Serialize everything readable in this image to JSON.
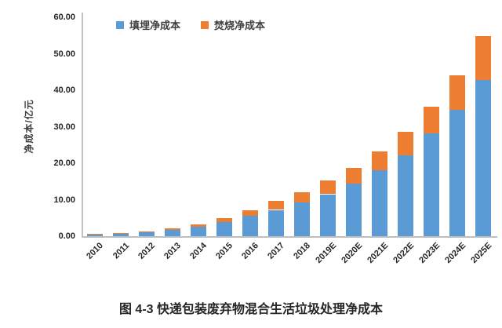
{
  "page": {
    "caption": "图 4-3 快递包装废弃物混合生活垃圾处理净成本"
  },
  "chart_data": {
    "type": "bar",
    "stacked": true,
    "title": "",
    "ylabel": "净成本/亿元",
    "xlabel": "",
    "ylim": [
      0,
      60
    ],
    "ytick_labels": [
      "0.00",
      "10.00",
      "20.00",
      "30.00",
      "40.00",
      "50.00",
      "60.00"
    ],
    "grid": false,
    "legend_position": "top",
    "categories": [
      "2010",
      "2011",
      "2012",
      "2013",
      "2014",
      "2015",
      "2016",
      "2017",
      "2018",
      "2019E",
      "2020E",
      "2021E",
      "2022E",
      "2023E",
      "2024E",
      "2025E"
    ],
    "series": [
      {
        "name": "填埋净成本",
        "color": "#5B9BD5",
        "values": [
          0.5,
          0.8,
          1.1,
          1.8,
          2.5,
          3.9,
          5.6,
          7.2,
          9.2,
          11.5,
          14.4,
          18.0,
          22.2,
          28.2,
          34.7,
          42.7
        ]
      },
      {
        "name": "焚烧净成本",
        "color": "#ED7D31",
        "values": [
          0.1,
          0.15,
          0.3,
          0.4,
          0.7,
          1.0,
          1.6,
          2.5,
          2.9,
          3.7,
          4.4,
          5.3,
          6.4,
          7.4,
          9.4,
          12.1
        ]
      }
    ]
  }
}
